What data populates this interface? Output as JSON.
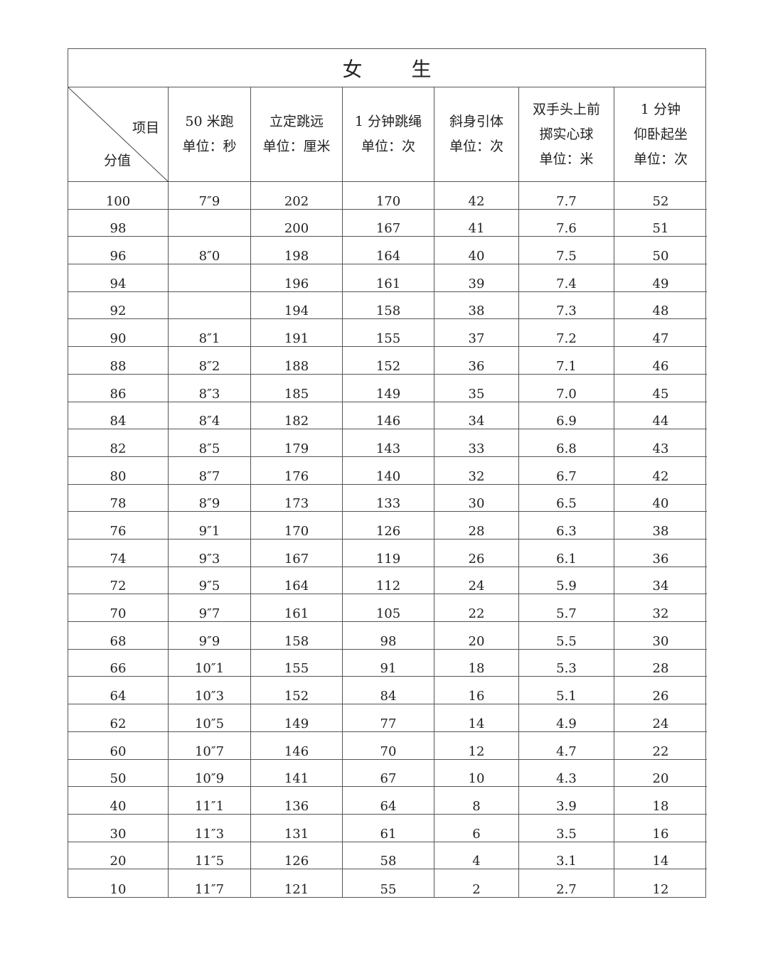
{
  "title": "女 生",
  "corner": {
    "top_label": "项目",
    "bottom_label": "分值"
  },
  "columns": [
    {
      "lines": [
        "50 米跑",
        "单位：秒"
      ]
    },
    {
      "lines": [
        "立定跳远",
        "单位：厘米"
      ]
    },
    {
      "lines": [
        "1 分钟跳绳",
        "单位：次"
      ]
    },
    {
      "lines": [
        "斜身引体",
        "单位：次"
      ]
    },
    {
      "lines": [
        "双手头上前",
        "掷实心球",
        "单位：米"
      ]
    },
    {
      "lines": [
        "1 分钟",
        "仰卧起坐",
        "单位：次"
      ]
    }
  ],
  "rows": [
    [
      "100",
      "7″9",
      "202",
      "170",
      "42",
      "7.7",
      "52"
    ],
    [
      "98",
      "",
      "200",
      "167",
      "41",
      "7.6",
      "51"
    ],
    [
      "96",
      "8″0",
      "198",
      "164",
      "40",
      "7.5",
      "50"
    ],
    [
      "94",
      "",
      "196",
      "161",
      "39",
      "7.4",
      "49"
    ],
    [
      "92",
      "",
      "194",
      "158",
      "38",
      "7.3",
      "48"
    ],
    [
      "90",
      "8″1",
      "191",
      "155",
      "37",
      "7.2",
      "47"
    ],
    [
      "88",
      "8″2",
      "188",
      "152",
      "36",
      "7.1",
      "46"
    ],
    [
      "86",
      "8″3",
      "185",
      "149",
      "35",
      "7.0",
      "45"
    ],
    [
      "84",
      "8″4",
      "182",
      "146",
      "34",
      "6.9",
      "44"
    ],
    [
      "82",
      "8″5",
      "179",
      "143",
      "33",
      "6.8",
      "43"
    ],
    [
      "80",
      "8″7",
      "176",
      "140",
      "32",
      "6.7",
      "42"
    ],
    [
      "78",
      "8″9",
      "173",
      "133",
      "30",
      "6.5",
      "40"
    ],
    [
      "76",
      "9″1",
      "170",
      "126",
      "28",
      "6.3",
      "38"
    ],
    [
      "74",
      "9″3",
      "167",
      "119",
      "26",
      "6.1",
      "36"
    ],
    [
      "72",
      "9″5",
      "164",
      "112",
      "24",
      "5.9",
      "34"
    ],
    [
      "70",
      "9″7",
      "161",
      "105",
      "22",
      "5.7",
      "32"
    ],
    [
      "68",
      "9″9",
      "158",
      "98",
      "20",
      "5.5",
      "30"
    ],
    [
      "66",
      "10″1",
      "155",
      "91",
      "18",
      "5.3",
      "28"
    ],
    [
      "64",
      "10″3",
      "152",
      "84",
      "16",
      "5.1",
      "26"
    ],
    [
      "62",
      "10″5",
      "149",
      "77",
      "14",
      "4.9",
      "24"
    ],
    [
      "60",
      "10″7",
      "146",
      "70",
      "12",
      "4.7",
      "22"
    ],
    [
      "50",
      "10″9",
      "141",
      "67",
      "10",
      "4.3",
      "20"
    ],
    [
      "40",
      "11″1",
      "136",
      "64",
      "8",
      "3.9",
      "18"
    ],
    [
      "30",
      "11″3",
      "131",
      "61",
      "6",
      "3.5",
      "16"
    ],
    [
      "20",
      "11″5",
      "126",
      "58",
      "4",
      "3.1",
      "14"
    ],
    [
      "10",
      "11″7",
      "121",
      "55",
      "2",
      "2.7",
      "12"
    ]
  ]
}
